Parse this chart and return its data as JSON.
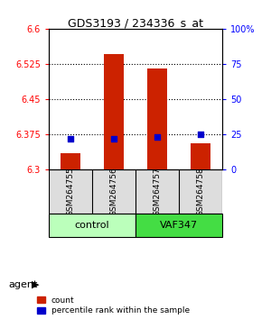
{
  "title": "GDS3193 / 234336_s_at",
  "samples": [
    "GSM264755",
    "GSM264756",
    "GSM264757",
    "GSM264758"
  ],
  "groups": [
    "control",
    "control",
    "VAF347",
    "VAF347"
  ],
  "group_colors": [
    "#aaffaa",
    "#aaffaa",
    "#44cc44",
    "#44cc44"
  ],
  "bar_values": [
    6.335,
    6.545,
    6.515,
    6.355
  ],
  "percentile_values": [
    22,
    22,
    23,
    25
  ],
  "ylim_left": [
    6.3,
    6.6
  ],
  "ylim_right": [
    0,
    100
  ],
  "yticks_left": [
    6.3,
    6.375,
    6.45,
    6.525,
    6.6
  ],
  "yticks_right": [
    0,
    25,
    50,
    75,
    100
  ],
  "hlines": [
    6.375,
    6.45,
    6.525
  ],
  "bar_color": "#cc2200",
  "dot_color": "#0000cc",
  "background_color": "#ffffff",
  "group_label": "agent",
  "unique_groups": [
    "control",
    "VAF347"
  ],
  "unique_group_colors": [
    "#bbffbb",
    "#44dd44"
  ]
}
